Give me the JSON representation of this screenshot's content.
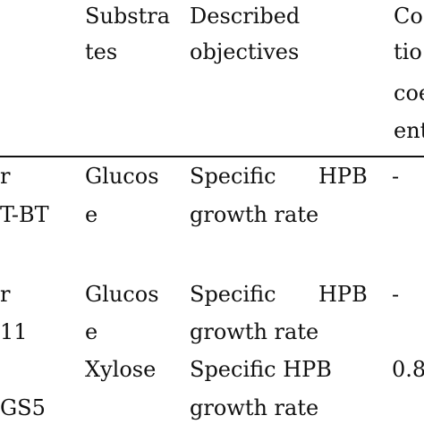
{
  "header": {
    "col_substrates": [
      "Substra",
      "tes"
    ],
    "col_objectives": [
      "Described",
      "objectives"
    ],
    "col_corr": [
      "Co",
      "tio",
      "coe",
      "ent"
    ]
  },
  "rows": [
    {
      "strain": [
        "r",
        "T-BT"
      ],
      "substrate": [
        "Glucos",
        "e"
      ],
      "objective_a": [
        "Specific",
        "HPB"
      ],
      "objective_b": "growth rate",
      "value": "-"
    },
    {
      "strain": [
        "r",
        "11"
      ],
      "substrate": [
        "Glucos",
        "e"
      ],
      "objective_a": [
        "Specific",
        "HPB"
      ],
      "objective_b": "growth rate",
      "value": "-"
    },
    {
      "strain": [
        "GS5"
      ],
      "substrate": [
        "Xylose"
      ],
      "objective_a": [
        "Specific HPB"
      ],
      "objective_b": "growth rate",
      "value": "0.8"
    }
  ]
}
